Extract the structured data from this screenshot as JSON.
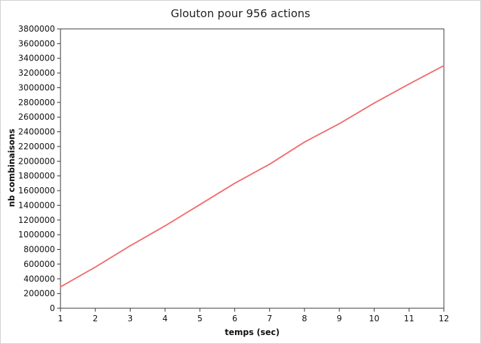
{
  "chart_data": {
    "type": "line",
    "title": "Glouton pour 956 actions",
    "xlabel": "temps (sec)",
    "ylabel": "nb combinaisons",
    "x": [
      1,
      2,
      3,
      4,
      5,
      6,
      7,
      8,
      9,
      10,
      11,
      12
    ],
    "xlim": [
      1,
      12
    ],
    "ylim": [
      0,
      3800000
    ],
    "x_ticks": [
      "1",
      "2",
      "3",
      "4",
      "5",
      "6",
      "7",
      "8",
      "9",
      "10",
      "11",
      "12"
    ],
    "y_ticks": [
      "0",
      "200000",
      "400000",
      "600000",
      "800000",
      "1000000",
      "1200000",
      "1400000",
      "1600000",
      "1800000",
      "2000000",
      "2200000",
      "2400000",
      "2600000",
      "2800000",
      "3000000",
      "3200000",
      "3400000",
      "3600000",
      "3800000"
    ],
    "grid": false,
    "legend": "none",
    "series": [
      {
        "color": "#f07070",
        "values": [
          290000,
          560000,
          850000,
          1120000,
          1410000,
          1700000,
          1960000,
          2260000,
          2510000,
          2790000,
          3050000,
          3300000
        ]
      }
    ]
  }
}
